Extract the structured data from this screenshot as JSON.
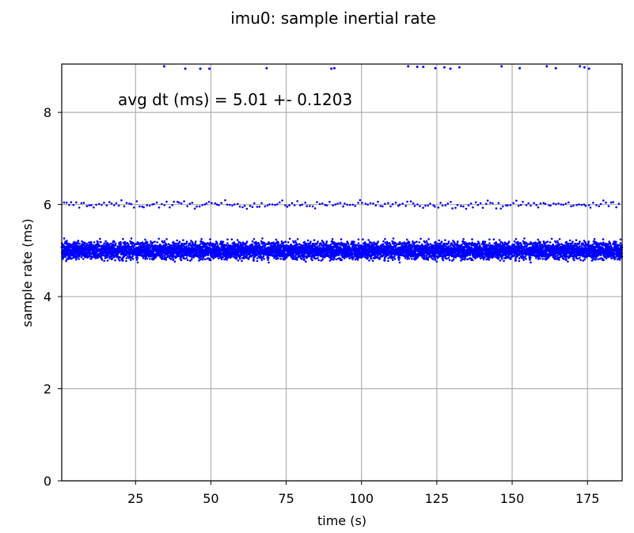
{
  "chart_data": {
    "type": "scatter",
    "title": "imu0: sample inertial rate",
    "xlabel": "time (s)",
    "ylabel": "sample rate (ms)",
    "annotation": "avg dt (ms) = 5.01 +- 0.1203",
    "xlim": [
      0.5,
      186.5
    ],
    "ylim": [
      0,
      9.05
    ],
    "xticks": [
      25,
      50,
      75,
      100,
      125,
      150,
      175
    ],
    "yticks": [
      0,
      2,
      4,
      6,
      8
    ],
    "grid": true,
    "marker_color": "#0000ff",
    "series": [
      {
        "values": [
          {
            "x": 34.5,
            "y": 9.0
          },
          {
            "x": 41.5,
            "y": 8.95
          },
          {
            "x": 46.5,
            "y": 8.95
          },
          {
            "x": 49.5,
            "y": 8.95
          },
          {
            "x": 68.5,
            "y": 8.96
          },
          {
            "x": 90.0,
            "y": 8.95
          },
          {
            "x": 91.0,
            "y": 8.96
          },
          {
            "x": 115.5,
            "y": 9.0
          },
          {
            "x": 118.5,
            "y": 8.99
          },
          {
            "x": 120.5,
            "y": 8.99
          },
          {
            "x": 124.5,
            "y": 8.96
          },
          {
            "x": 127.5,
            "y": 8.98
          },
          {
            "x": 129.5,
            "y": 8.95
          },
          {
            "x": 132.5,
            "y": 8.98
          },
          {
            "x": 146.5,
            "y": 9.0
          },
          {
            "x": 152.5,
            "y": 8.96
          },
          {
            "x": 161.5,
            "y": 9.0
          },
          {
            "x": 164.5,
            "y": 8.96
          },
          {
            "x": 172.5,
            "y": 9.0
          },
          {
            "x": 174.0,
            "y": 8.98
          },
          {
            "x": 175.5,
            "y": 8.95
          }
        ]
      }
    ],
    "bands": [
      {
        "y_center": 6.0,
        "spread": 0.04,
        "x_start": 1,
        "x_end": 186,
        "density": 1.2
      },
      {
        "y_center": 5.0,
        "spread": 0.09,
        "x_start": 0.5,
        "x_end": 186.5,
        "density": 40
      }
    ]
  }
}
